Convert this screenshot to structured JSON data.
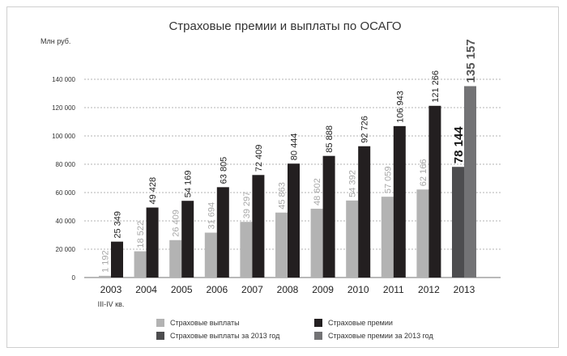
{
  "chart_data": {
    "type": "bar",
    "title": "Страховые премии и выплаты по ОСАГО",
    "ylabel": "Млн руб.",
    "ylim": [
      0,
      140000
    ],
    "yticks": [
      0,
      20000,
      40000,
      60000,
      80000,
      100000,
      120000,
      140000
    ],
    "ytick_labels": [
      "0",
      "20 000",
      "40 000",
      "60 000",
      "80 000",
      "100 000",
      "120 000",
      "140 000"
    ],
    "categories": [
      "2003",
      "2004",
      "2005",
      "2006",
      "2007",
      "2008",
      "2009",
      "2010",
      "2011",
      "2012",
      "2013"
    ],
    "category_note": {
      "category": "2003",
      "text": "III-IV кв."
    },
    "series": [
      {
        "name": "Страховые выплаты",
        "color": "#b3b3b3",
        "values": [
          1192,
          18522,
          26409,
          31694,
          39297,
          45863,
          48602,
          54392,
          57059,
          62166,
          null
        ],
        "labels": [
          "1 192",
          "18 522",
          "26 409",
          "31 694",
          "39 297",
          "45 863",
          "48 602",
          "54 392",
          "57 059",
          "62 166",
          ""
        ]
      },
      {
        "name": "Страховые премии",
        "color": "#231f20",
        "values": [
          25349,
          49428,
          54169,
          63805,
          72409,
          80444,
          85888,
          92726,
          106943,
          121266,
          null
        ],
        "labels": [
          "25 349",
          "49 428",
          "54 169",
          "63 805",
          "72 409",
          "80 444",
          "85 888",
          "92 726",
          "106 943",
          "121 266",
          ""
        ]
      },
      {
        "name": "Страховые выплаты за 2013 год",
        "color": "#4d4d4f",
        "values": [
          null,
          null,
          null,
          null,
          null,
          null,
          null,
          null,
          null,
          null,
          78144
        ],
        "labels": [
          "",
          "",
          "",
          "",
          "",
          "",
          "",
          "",
          "",
          "",
          "78 144"
        ]
      },
      {
        "name": "Страховые премии за 2013 год",
        "color": "#737375",
        "values": [
          null,
          null,
          null,
          null,
          null,
          null,
          null,
          null,
          null,
          null,
          135157
        ],
        "labels": [
          "",
          "",
          "",
          "",
          "",
          "",
          "",
          "",
          "",
          "",
          "135 157"
        ]
      }
    ],
    "grid": true,
    "legend": "bottom"
  }
}
